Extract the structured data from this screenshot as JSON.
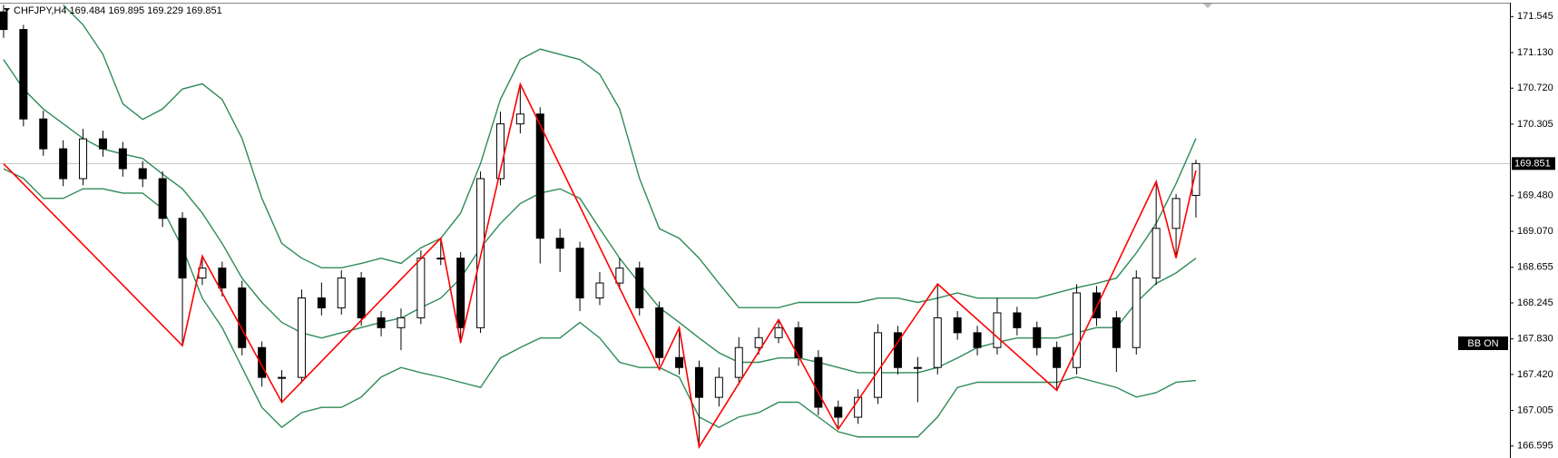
{
  "chart_data": {
    "type": "candlestick",
    "title": "CHFJPY,H4  169.484 169.895 169.229 169.851",
    "indicator_label": "BB ON",
    "current_price": 169.851,
    "xlim": [
      -0.18,
      75.8
    ],
    "ylim": [
      166.457,
      171.705
    ],
    "yticks": [
      171.545,
      {
        "value": 171.13,
        "label": "171.130"
      },
      {
        "value": 170.72,
        "label": "170.720"
      },
      170.305,
      {
        "value": 169.48,
        "label": "169.480"
      },
      {
        "value": 169.07,
        "label": "169.070"
      },
      168.655,
      168.245,
      {
        "value": 167.83,
        "label": "167.830"
      },
      {
        "value": 167.42,
        "label": "167.420"
      },
      167.005,
      166.595
    ],
    "bull_color": "#ffffff",
    "bear_color": "#000000",
    "candles": {
      "open": [
        171.6,
        171.396,
        170.365,
        170.021,
        169.677,
        170.136,
        170.021,
        169.792,
        169.677,
        169.219,
        168.532,
        168.646,
        168.417,
        167.73,
        167.386,
        167.386,
        168.302,
        168.188,
        168.532,
        168.073,
        167.959,
        168.073,
        168.761,
        168.761,
        167.959,
        169.677,
        170.308,
        170.422,
        168.99,
        168.875,
        168.302,
        168.474,
        168.646,
        168.188,
        167.615,
        167.5,
        167.156,
        167.386,
        167.73,
        167.844,
        167.959,
        167.615,
        167.042,
        166.927,
        167.156,
        167.901,
        167.5,
        167.5,
        168.073,
        167.901,
        167.73,
        168.13,
        167.959,
        167.73,
        167.5,
        168.36,
        168.073,
        167.73,
        168.532,
        169.104,
        169.484
      ],
      "high": [
        171.68,
        171.45,
        170.46,
        170.12,
        170.25,
        170.23,
        170.1,
        169.88,
        169.76,
        169.29,
        168.78,
        168.72,
        168.5,
        167.8,
        167.47,
        168.4,
        168.48,
        168.62,
        168.6,
        168.15,
        168.18,
        168.85,
        168.99,
        168.83,
        169.76,
        170.45,
        170.77,
        170.5,
        169.1,
        168.95,
        168.6,
        168.76,
        168.72,
        168.26,
        167.96,
        167.58,
        167.5,
        167.85,
        167.96,
        168.05,
        168.03,
        167.7,
        167.12,
        167.25,
        168.0,
        167.98,
        167.62,
        168.46,
        168.15,
        167.98,
        168.3,
        168.2,
        168.03,
        167.8,
        168.46,
        168.44,
        168.15,
        168.62,
        169.64,
        169.5,
        169.895
      ],
      "low": [
        171.3,
        170.28,
        169.94,
        169.59,
        169.6,
        169.93,
        169.7,
        169.58,
        169.12,
        167.75,
        168.45,
        168.32,
        167.64,
        167.28,
        167.1,
        167.32,
        168.1,
        168.11,
        167.98,
        167.86,
        167.7,
        168.0,
        168.68,
        167.78,
        167.9,
        169.6,
        170.2,
        168.7,
        168.6,
        168.15,
        168.22,
        168.4,
        168.1,
        167.52,
        167.42,
        166.58,
        167.05,
        167.3,
        167.65,
        167.78,
        167.52,
        166.95,
        166.79,
        166.85,
        167.08,
        167.42,
        167.1,
        167.42,
        167.82,
        167.64,
        167.65,
        167.87,
        167.64,
        167.24,
        167.42,
        167.98,
        167.45,
        167.65,
        168.45,
        168.76,
        169.229
      ],
      "close": [
        171.396,
        170.365,
        170.021,
        169.677,
        170.136,
        170.021,
        169.792,
        169.677,
        169.219,
        168.532,
        168.646,
        168.417,
        167.73,
        167.386,
        167.386,
        168.302,
        168.188,
        168.532,
        168.073,
        167.959,
        168.073,
        168.761,
        168.761,
        167.959,
        169.677,
        170.308,
        170.422,
        168.99,
        168.875,
        168.302,
        168.474,
        168.646,
        168.188,
        167.615,
        167.5,
        167.156,
        167.386,
        167.73,
        167.844,
        167.959,
        167.615,
        167.042,
        166.927,
        167.156,
        167.901,
        167.5,
        167.5,
        168.073,
        167.901,
        167.73,
        168.13,
        167.959,
        167.73,
        167.5,
        168.36,
        168.073,
        167.73,
        168.532,
        169.104,
        169.448,
        169.851
      ]
    },
    "bands": [
      {
        "color": "#2e8b57",
        "values": [
          null,
          null,
          null,
          171.68,
          171.45,
          171.11,
          170.54,
          170.36,
          170.48,
          170.71,
          170.77,
          170.59,
          170.14,
          169.45,
          168.93,
          168.76,
          168.65,
          168.65,
          168.7,
          168.76,
          168.7,
          168.88,
          168.99,
          169.28,
          169.85,
          170.59,
          171.05,
          171.17,
          171.11,
          171.05,
          170.88,
          170.48,
          169.68,
          169.1,
          168.99,
          168.76,
          168.47,
          168.19,
          168.19,
          168.19,
          168.25,
          168.25,
          168.25,
          168.25,
          168.3,
          168.3,
          168.25,
          168.3,
          168.36,
          168.3,
          168.3,
          168.3,
          168.3,
          168.36,
          168.42,
          168.47,
          168.53,
          168.82,
          169.16,
          169.62,
          170.14
        ]
      },
      {
        "color": "#2e8b57",
        "values": [
          171.05,
          170.71,
          170.48,
          170.31,
          170.14,
          170.02,
          169.96,
          169.91,
          169.73,
          169.56,
          169.28,
          168.93,
          168.53,
          168.25,
          168.02,
          167.9,
          167.84,
          167.9,
          167.96,
          168.02,
          168.07,
          168.19,
          168.3,
          168.53,
          168.88,
          169.16,
          169.39,
          169.51,
          169.56,
          169.45,
          169.1,
          168.76,
          168.47,
          168.19,
          168.02,
          167.84,
          167.67,
          167.56,
          167.56,
          167.61,
          167.61,
          167.56,
          167.5,
          167.44,
          167.44,
          167.44,
          167.44,
          167.5,
          167.61,
          167.73,
          167.79,
          167.84,
          167.84,
          167.84,
          167.9,
          167.96,
          167.96,
          168.25,
          168.47,
          168.59,
          168.76
        ]
      },
      {
        "color": "#2e8b57",
        "values": [
          169.79,
          169.68,
          169.45,
          169.45,
          169.56,
          169.56,
          169.51,
          169.51,
          169.33,
          168.88,
          168.3,
          167.96,
          167.5,
          167.04,
          166.81,
          166.98,
          167.04,
          167.04,
          167.16,
          167.39,
          167.5,
          167.44,
          167.39,
          167.33,
          167.27,
          167.61,
          167.73,
          167.84,
          167.84,
          168.02,
          167.84,
          167.56,
          167.5,
          167.5,
          167.39,
          166.93,
          166.81,
          166.93,
          166.98,
          167.1,
          167.1,
          166.93,
          166.76,
          166.7,
          166.7,
          166.7,
          166.7,
          166.93,
          167.27,
          167.33,
          167.33,
          167.33,
          167.33,
          167.33,
          167.39,
          167.33,
          167.27,
          167.16,
          167.21,
          167.33,
          167.35
        ]
      }
    ],
    "zigzag": {
      "color": "#ff0000",
      "x": [
        0,
        9,
        10,
        14,
        22,
        23,
        26,
        33,
        34,
        35,
        39,
        42,
        47,
        53,
        58,
        59,
        60
      ],
      "values": [
        169.849,
        167.752,
        168.784,
        167.099,
        168.99,
        167.787,
        170.766,
        167.477,
        167.959,
        166.584,
        168.05,
        166.79,
        168.463,
        167.237,
        169.643,
        168.761,
        169.77
      ]
    }
  }
}
